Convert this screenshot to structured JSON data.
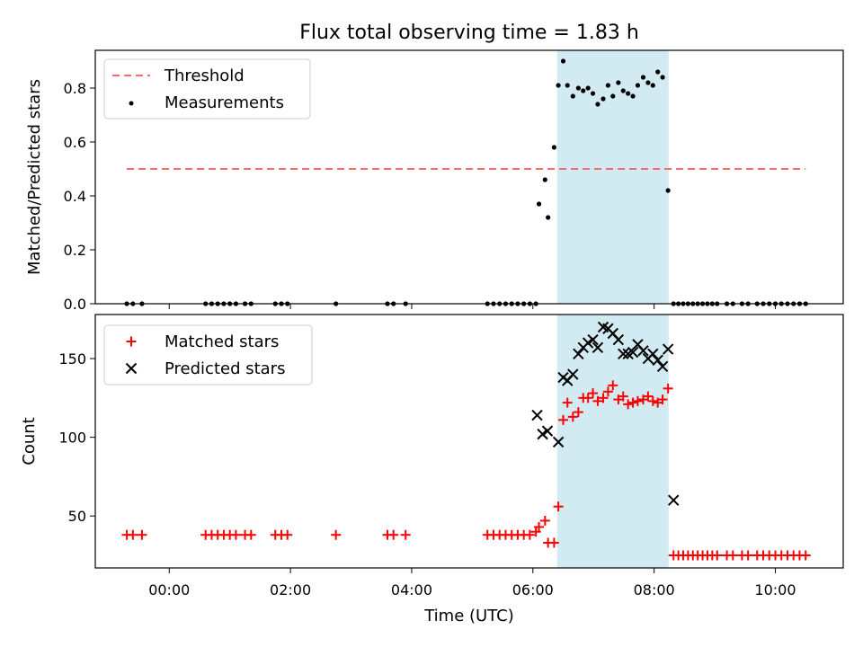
{
  "chart_data": {
    "title": "Flux total observing time = 1.83 h",
    "xlabel": "Time (UTC)",
    "x_unit": "hours UTC",
    "xlim": [
      -1.22,
      11.12
    ],
    "x_ticks": [
      {
        "value": 0,
        "label": "00:00"
      },
      {
        "value": 2,
        "label": "02:00"
      },
      {
        "value": 4,
        "label": "04:00"
      },
      {
        "value": 6,
        "label": "06:00"
      },
      {
        "value": 8,
        "label": "08:00"
      },
      {
        "value": 10,
        "label": "10:00"
      }
    ],
    "shaded_interval": {
      "start": 6.4,
      "end": 8.24,
      "color": "#add8e6"
    },
    "colors": {
      "threshold": "#ff6b6b",
      "measurements": "#000000",
      "matched": "#ff0000",
      "predicted": "#000000"
    },
    "panels": [
      {
        "type": "scatter",
        "ylabel": "Matched/Predicted stars",
        "ylim": [
          0,
          0.94
        ],
        "y_ticks": [
          {
            "value": 0,
            "label": "0.0"
          },
          {
            "value": 0.2,
            "label": "0.2"
          },
          {
            "value": 0.4,
            "label": "0.4"
          },
          {
            "value": 0.6,
            "label": "0.6"
          },
          {
            "value": 0.8,
            "label": "0.8"
          }
        ],
        "legend_position": "top-left",
        "threshold": {
          "name": "Threshold",
          "y": 0.5,
          "x": [
            -0.7,
            10.5
          ]
        },
        "series": [
          {
            "name": "Measurements",
            "marker": "dot",
            "x": [
              -0.7,
              -0.6,
              -0.45,
              0.6,
              0.7,
              0.8,
              0.9,
              1.0,
              1.1,
              1.25,
              1.35,
              1.75,
              1.85,
              1.95,
              2.75,
              3.6,
              3.7,
              3.9,
              5.25,
              5.35,
              5.45,
              5.55,
              5.65,
              5.75,
              5.85,
              5.95,
              6.05,
              6.1,
              6.2,
              6.25,
              6.35,
              6.42,
              6.5,
              6.57,
              6.66,
              6.75,
              6.83,
              6.91,
              6.99,
              7.07,
              7.16,
              7.24,
              7.32,
              7.41,
              7.49,
              7.57,
              7.65,
              7.73,
              7.82,
              7.9,
              7.98,
              8.06,
              8.14,
              8.23,
              8.32,
              8.4,
              8.48,
              8.56,
              8.64,
              8.72,
              8.8,
              8.88,
              8.96,
              9.04,
              9.2,
              9.3,
              9.45,
              9.55,
              9.7,
              9.8,
              9.9,
              10.0,
              10.1,
              10.2,
              10.3,
              10.4,
              10.5
            ],
            "y": [
              0,
              0,
              0,
              0,
              0,
              0,
              0,
              0,
              0,
              0,
              0,
              0,
              0,
              0,
              0,
              0,
              0,
              0,
              0,
              0,
              0,
              0,
              0,
              0,
              0,
              0,
              0,
              0.37,
              0.46,
              0.32,
              0.58,
              0.81,
              0.9,
              0.81,
              0.77,
              0.8,
              0.79,
              0.8,
              0.78,
              0.74,
              0.76,
              0.81,
              0.77,
              0.82,
              0.79,
              0.78,
              0.77,
              0.81,
              0.84,
              0.82,
              0.81,
              0.86,
              0.84,
              0.42,
              0,
              0,
              0,
              0,
              0,
              0,
              0,
              0,
              0,
              0,
              0,
              0,
              0,
              0,
              0,
              0,
              0,
              0,
              0,
              0,
              0,
              0,
              0
            ]
          }
        ]
      },
      {
        "type": "scatter",
        "ylabel": "Count",
        "ylim": [
          17,
          178
        ],
        "y_ticks": [
          {
            "value": 50,
            "label": "50"
          },
          {
            "value": 100,
            "label": "100"
          },
          {
            "value": 150,
            "label": "150"
          }
        ],
        "legend_position": "top-left",
        "series": [
          {
            "name": "Matched stars",
            "marker": "plus",
            "x": [
              -0.7,
              -0.6,
              -0.45,
              0.6,
              0.7,
              0.8,
              0.9,
              1.0,
              1.1,
              1.25,
              1.35,
              1.75,
              1.85,
              1.95,
              2.75,
              3.6,
              3.7,
              3.9,
              5.25,
              5.35,
              5.45,
              5.55,
              5.65,
              5.75,
              5.85,
              5.95,
              6.05,
              6.1,
              6.2,
              6.25,
              6.35,
              6.42,
              6.5,
              6.57,
              6.66,
              6.75,
              6.83,
              6.91,
              6.99,
              7.07,
              7.16,
              7.24,
              7.32,
              7.41,
              7.49,
              7.57,
              7.65,
              7.73,
              7.82,
              7.9,
              7.98,
              8.06,
              8.14,
              8.23,
              8.32,
              8.4,
              8.48,
              8.56,
              8.64,
              8.72,
              8.8,
              8.88,
              8.96,
              9.04,
              9.2,
              9.3,
              9.45,
              9.55,
              9.7,
              9.8,
              9.9,
              10.0,
              10.1,
              10.2,
              10.3,
              10.4,
              10.5
            ],
            "y": [
              38,
              38,
              38,
              38,
              38,
              38,
              38,
              38,
              38,
              38,
              38,
              38,
              38,
              38,
              38,
              38,
              38,
              38,
              38,
              38,
              38,
              38,
              38,
              38,
              38,
              38,
              40,
              43,
              47,
              33,
              33,
              56,
              111,
              122,
              113,
              116,
              125,
              125,
              128,
              123,
              125,
              129,
              133,
              124,
              126,
              121,
              122,
              123,
              124,
              126,
              123,
              122,
              124,
              131,
              25,
              25,
              25,
              25,
              25,
              25,
              25,
              25,
              25,
              25,
              25,
              25,
              25,
              25,
              25,
              25,
              25,
              25,
              25,
              25,
              25,
              25,
              25
            ]
          },
          {
            "name": "Predicted stars",
            "marker": "x",
            "x": [
              6.07,
              6.16,
              6.24,
              6.42,
              6.5,
              6.57,
              6.66,
              6.75,
              6.83,
              6.91,
              6.99,
              7.07,
              7.16,
              7.24,
              7.32,
              7.41,
              7.49,
              7.57,
              7.65,
              7.73,
              7.82,
              7.9,
              7.98,
              8.06,
              8.14,
              8.23,
              8.32
            ],
            "y": [
              114,
              102,
              104,
              97,
              138,
              136,
              140,
              153,
              157,
              160,
              162,
              157,
              170,
              169,
              166,
              162,
              153,
              153,
              154,
              159,
              155,
              150,
              153,
              149,
              145,
              156,
              60
            ]
          }
        ]
      }
    ]
  }
}
